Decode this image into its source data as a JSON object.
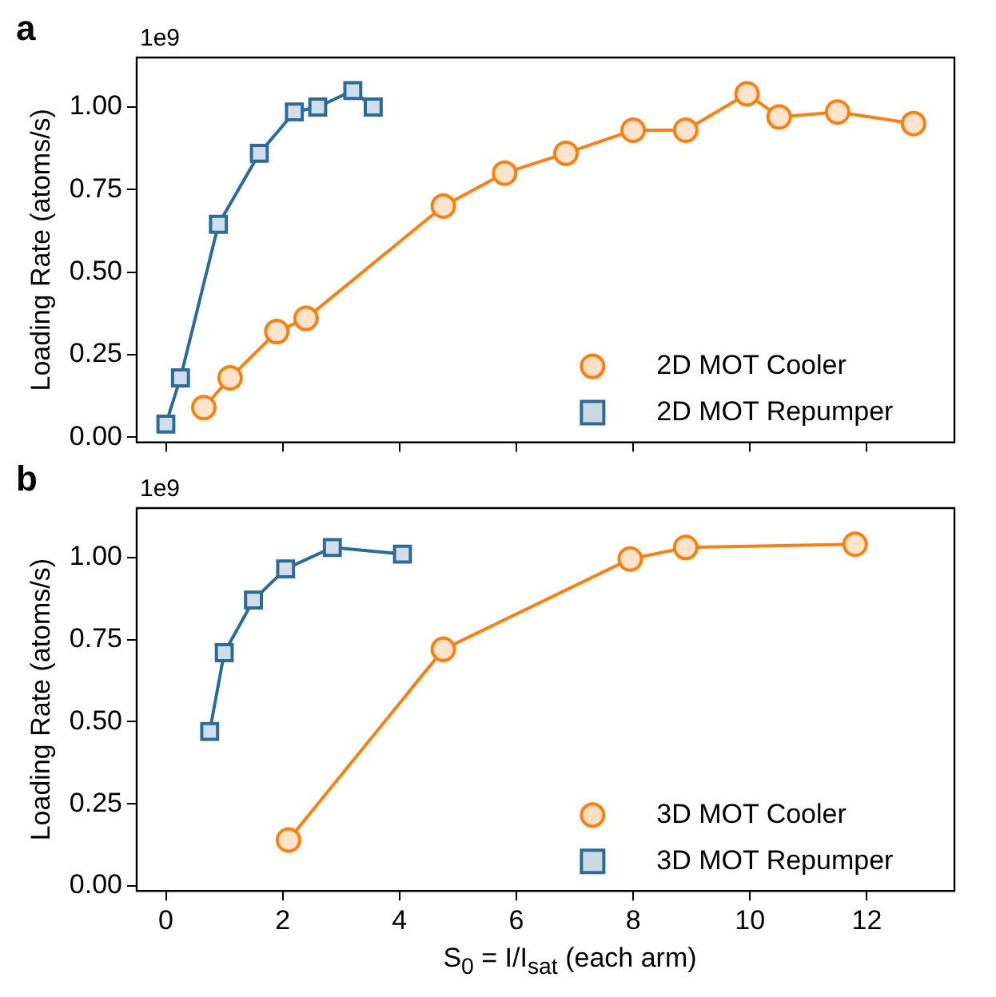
{
  "chart_data": [
    {
      "type": "line",
      "title": "a",
      "ylabel": "Loading Rate (atoms/s)",
      "annotations": [
        "1e9"
      ],
      "legend": "bottom right",
      "tick_labels": "y",
      "grid": false,
      "xlim": [
        -0.5,
        13.5
      ],
      "xticks": [
        0,
        2,
        4,
        6,
        8,
        10,
        12
      ],
      "ylim": [
        -0.015,
        1.15
      ],
      "yticks": [
        {
          "value": 0,
          "label": "0.00"
        },
        {
          "value": 0.25,
          "label": "0.25"
        },
        {
          "value": 0.5,
          "label": "0.50"
        },
        {
          "value": 0.75,
          "label": "0.75"
        },
        {
          "value": 1,
          "label": "1.00"
        }
      ],
      "series": [
        {
          "name": "2D MOT Cooler",
          "color": "#ff7f0e",
          "marker": "circle",
          "x": [
            0.65,
            1.1,
            1.9,
            2.4,
            4.75,
            5.8,
            6.85,
            8.0,
            8.9,
            9.95,
            10.5,
            11.5,
            12.8
          ],
          "values": [
            0.09,
            0.18,
            0.32,
            0.36,
            0.7,
            0.8,
            0.86,
            0.93,
            0.93,
            1.04,
            0.97,
            0.985,
            0.95
          ]
        },
        {
          "name": "2D MOT Repumper",
          "color": "#2b6a99",
          "marker": "square",
          "x": [
            0,
            0.25,
            0.9,
            1.6,
            2.2,
            2.6,
            3.2,
            3.55
          ],
          "values": [
            0.04,
            0.18,
            0.645,
            0.86,
            0.985,
            1.0,
            1.05,
            1.0
          ]
        }
      ]
    },
    {
      "type": "line",
      "title": "b",
      "xlabel": "S$_{0}$ = I/I$_{sat}$ (each arm)",
      "ylabel": "Loading Rate (atoms/s)",
      "annotations": [
        "1e9"
      ],
      "legend": "bottom right",
      "grid": false,
      "xlim": [
        -0.5,
        13.5
      ],
      "xticks": [
        0,
        2,
        4,
        6,
        8,
        10,
        12
      ],
      "ylim": [
        -0.015,
        1.15
      ],
      "yticks": [
        {
          "value": 0,
          "label": "0.00"
        },
        {
          "value": 0.25,
          "label": "0.25"
        },
        {
          "value": 0.5,
          "label": "0.50"
        },
        {
          "value": 0.75,
          "label": "0.75"
        },
        {
          "value": 1,
          "label": "1.00"
        }
      ],
      "series": [
        {
          "name": "3D MOT Cooler",
          "color": "#ff7f0e",
          "marker": "circle",
          "x": [
            2.1,
            4.75,
            7.95,
            8.9,
            11.8
          ],
          "values": [
            0.14,
            0.72,
            0.995,
            1.03,
            1.04
          ]
        },
        {
          "name": "3D MOT Repumper",
          "color": "#2b6a99",
          "marker": "square",
          "x": [
            0.75,
            1.0,
            1.5,
            2.05,
            2.85,
            4.05
          ],
          "values": [
            0.47,
            0.71,
            0.87,
            0.965,
            1.03,
            1.01
          ]
        }
      ]
    }
  ]
}
